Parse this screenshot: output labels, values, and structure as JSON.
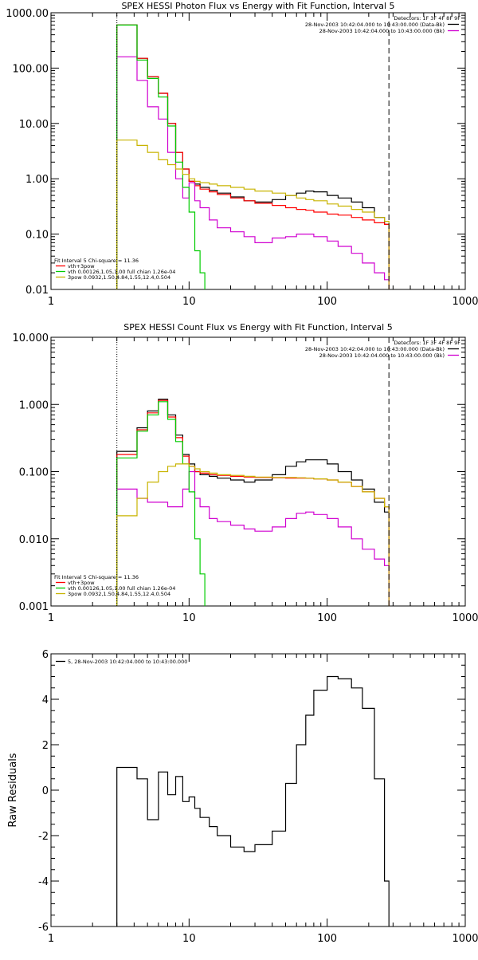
{
  "chart_data": [
    {
      "type": "line",
      "title": "SPEX HESSI Photon Flux vs Energy with Fit Function, Interval 5",
      "xscale": "log",
      "yscale": "log",
      "xlim": [
        1,
        1000
      ],
      "ylim": [
        0.01,
        1000
      ],
      "xticks": [
        {
          "v": 1,
          "label": "1"
        },
        {
          "v": 10,
          "label": "10"
        },
        {
          "v": 100,
          "label": "100"
        },
        {
          "v": 1000,
          "label": "1000"
        }
      ],
      "yticks": [
        {
          "v": 0.01,
          "label": "0.01"
        },
        {
          "v": 0.1,
          "label": "0.10"
        },
        {
          "v": 1,
          "label": "1.00"
        },
        {
          "v": 10,
          "label": "10.00"
        },
        {
          "v": 100,
          "label": "100.00"
        },
        {
          "v": 1000,
          "label": "1000.00"
        }
      ],
      "vlines": [
        {
          "x": 3,
          "style": "dotted",
          "color": "#000000"
        },
        {
          "x": 280,
          "style": "dashed",
          "color": "#000000"
        }
      ],
      "info_lines": [
        "Detectors: 1F 3F 4F 8F 9F",
        "28-Nov-2003 10:42:04.000 to 10:43:00.000 (Data-Bk)",
        "28-Nov-2003 10:42:04.000 to 10:43:00.000 (Bk)"
      ],
      "info_colors": [
        "",
        "#000000",
        "#d000d0"
      ],
      "legend_title": "Fit Interval 5   Chi-square = 11.36",
      "legend": [
        {
          "name": "vth+3pow",
          "color": "#ff0000"
        },
        {
          "name": "vth 0.00126,1.05,1.00  full chian 1.26e-04",
          "color": "#00cc00"
        },
        {
          "name": "3pow 0.0932,1.50,4.84,1.55,12.4,0.504",
          "color": "#c8b400"
        }
      ],
      "series": [
        {
          "role": "data-bk",
          "color": "#000000",
          "x": [
            3,
            3.5,
            4.2,
            5,
            6,
            7,
            8,
            9,
            10,
            11,
            12,
            14,
            16,
            20,
            25,
            30,
            40,
            50,
            60,
            70,
            80,
            100,
            120,
            150,
            180,
            220,
            260,
            280
          ],
          "y": [
            600,
            600,
            150,
            70,
            35,
            10,
            3,
            1.5,
            0.9,
            0.8,
            0.7,
            0.62,
            0.55,
            0.47,
            0.4,
            0.38,
            0.42,
            0.5,
            0.55,
            0.6,
            0.58,
            0.5,
            0.45,
            0.38,
            0.3,
            0.2,
            0.15,
            0.1
          ]
        },
        {
          "role": "vth+3pow",
          "color": "#ff0000",
          "x": [
            3,
            3.5,
            4.2,
            5,
            6,
            7,
            8,
            9,
            10,
            11,
            12,
            14,
            16,
            20,
            25,
            30,
            40,
            50,
            60,
            70,
            80,
            100,
            120,
            150,
            180,
            220,
            260,
            280
          ],
          "y": [
            600,
            600,
            150,
            70,
            35,
            10,
            3,
            1.5,
            0.9,
            0.75,
            0.65,
            0.58,
            0.52,
            0.45,
            0.4,
            0.36,
            0.33,
            0.3,
            0.28,
            0.27,
            0.25,
            0.23,
            0.22,
            0.2,
            0.18,
            0.16,
            0.15,
            0.1
          ]
        },
        {
          "role": "bk",
          "color": "#d000d0",
          "x": [
            3,
            3.5,
            4.2,
            5,
            6,
            7,
            8,
            9,
            10,
            11,
            12,
            14,
            16,
            20,
            25,
            30,
            40,
            50,
            60,
            70,
            80,
            100,
            120,
            150,
            180,
            220,
            260,
            280
          ],
          "y": [
            160,
            160,
            60,
            20,
            12,
            3,
            1,
            0.45,
            0.85,
            0.4,
            0.3,
            0.18,
            0.13,
            0.11,
            0.09,
            0.07,
            0.085,
            0.09,
            0.1,
            0.1,
            0.09,
            0.075,
            0.06,
            0.045,
            0.03,
            0.02,
            0.015,
            0.013
          ]
        },
        {
          "role": "vth",
          "color": "#00cc00",
          "x": [
            3,
            3.5,
            4.2,
            5,
            6,
            7,
            8,
            9,
            10,
            11,
            12,
            13
          ],
          "y": [
            600,
            600,
            140,
            65,
            30,
            9,
            2,
            0.7,
            0.25,
            0.05,
            0.02,
            0.01
          ]
        },
        {
          "role": "3pow",
          "color": "#c8b400",
          "x": [
            3,
            3.5,
            4.2,
            5,
            6,
            7,
            8,
            9,
            10,
            11,
            12,
            14,
            16,
            20,
            25,
            30,
            40,
            50,
            60,
            70,
            80,
            100,
            120,
            150,
            180,
            220,
            260,
            280
          ],
          "y": [
            5,
            5,
            4,
            3,
            2.2,
            1.8,
            1.5,
            1.2,
            1.0,
            0.9,
            0.85,
            0.8,
            0.75,
            0.7,
            0.65,
            0.6,
            0.55,
            0.5,
            0.45,
            0.42,
            0.4,
            0.35,
            0.32,
            0.28,
            0.25,
            0.2,
            0.17,
            0.13
          ]
        }
      ]
    },
    {
      "type": "line",
      "title": "SPEX HESSI Count Flux vs Energy with Fit Function, Interval 5",
      "xscale": "log",
      "yscale": "log",
      "xlim": [
        1,
        1000
      ],
      "ylim": [
        0.001,
        10
      ],
      "xticks": [
        {
          "v": 1,
          "label": "1"
        },
        {
          "v": 10,
          "label": "10"
        },
        {
          "v": 100,
          "label": "100"
        },
        {
          "v": 1000,
          "label": "1000"
        }
      ],
      "yticks": [
        {
          "v": 0.001,
          "label": "0.001"
        },
        {
          "v": 0.01,
          "label": "0.010"
        },
        {
          "v": 0.1,
          "label": "0.100"
        },
        {
          "v": 1,
          "label": "1.000"
        },
        {
          "v": 10,
          "label": "10.000"
        }
      ],
      "vlines": [
        {
          "x": 3,
          "style": "dotted",
          "color": "#000000"
        },
        {
          "x": 280,
          "style": "dashed",
          "color": "#000000"
        }
      ],
      "info_lines": [
        "Detectors: 1F 3F 4F 8F 9F",
        "28-Nov-2003 10:42:04.000 to 10:43:00.000 (Data-Bk)",
        "28-Nov-2003 10:42:04.000 to 10:43:00.000 (Bk)"
      ],
      "info_colors": [
        "",
        "#000000",
        "#d000d0"
      ],
      "legend_title": "Fit Interval 5   Chi-square = 11.36",
      "legend": [
        {
          "name": "vth+3pow",
          "color": "#ff0000"
        },
        {
          "name": "vth 0.00126,1.05,1.00  full chian 1.26e-04",
          "color": "#00cc00"
        },
        {
          "name": "3pow 0.0932,1.50,4.84,1.55,12.4,0.504",
          "color": "#c8b400"
        }
      ],
      "series": [
        {
          "role": "data-bk",
          "color": "#000000",
          "x": [
            3,
            3.5,
            4.2,
            5,
            6,
            7,
            8,
            9,
            10,
            11,
            12,
            14,
            16,
            20,
            25,
            30,
            40,
            50,
            60,
            70,
            80,
            100,
            120,
            150,
            180,
            220,
            260,
            280
          ],
          "y": [
            0.2,
            0.2,
            0.45,
            0.8,
            1.2,
            0.7,
            0.35,
            0.18,
            0.13,
            0.1,
            0.09,
            0.085,
            0.08,
            0.075,
            0.07,
            0.075,
            0.09,
            0.12,
            0.14,
            0.15,
            0.15,
            0.13,
            0.1,
            0.075,
            0.055,
            0.035,
            0.025,
            0.018
          ]
        },
        {
          "role": "vth+3pow",
          "color": "#ff0000",
          "x": [
            3,
            3.5,
            4.2,
            5,
            6,
            7,
            8,
            9,
            10,
            11,
            12,
            14,
            16,
            20,
            25,
            30,
            40,
            50,
            60,
            70,
            80,
            100,
            120,
            150,
            180,
            220,
            260,
            280
          ],
          "y": [
            0.18,
            0.18,
            0.42,
            0.75,
            1.15,
            0.65,
            0.32,
            0.17,
            0.12,
            0.1,
            0.095,
            0.09,
            0.088,
            0.085,
            0.083,
            0.082,
            0.081,
            0.08,
            0.08,
            0.08,
            0.078,
            0.075,
            0.07,
            0.06,
            0.05,
            0.04,
            0.03,
            0.025
          ]
        },
        {
          "role": "bk",
          "color": "#d000d0",
          "x": [
            3,
            3.5,
            4.2,
            5,
            6,
            7,
            8,
            9,
            10,
            11,
            12,
            14,
            16,
            20,
            25,
            30,
            40,
            50,
            60,
            70,
            80,
            100,
            120,
            150,
            180,
            220,
            260,
            280
          ],
          "y": [
            0.055,
            0.055,
            0.04,
            0.035,
            0.035,
            0.03,
            0.03,
            0.055,
            0.1,
            0.04,
            0.03,
            0.02,
            0.018,
            0.016,
            0.014,
            0.013,
            0.015,
            0.02,
            0.024,
            0.025,
            0.023,
            0.02,
            0.015,
            0.01,
            0.007,
            0.005,
            0.004,
            0.003
          ]
        },
        {
          "role": "vth",
          "color": "#00cc00",
          "x": [
            3,
            3.5,
            4.2,
            5,
            6,
            7,
            8,
            9,
            10,
            11,
            12,
            13
          ],
          "y": [
            0.16,
            0.16,
            0.4,
            0.7,
            1.1,
            0.6,
            0.28,
            0.13,
            0.05,
            0.01,
            0.003,
            0.001
          ]
        },
        {
          "role": "3pow",
          "color": "#c8b400",
          "x": [
            3,
            3.5,
            4.2,
            5,
            6,
            7,
            8,
            9,
            10,
            11,
            12,
            14,
            16,
            20,
            25,
            30,
            40,
            50,
            60,
            70,
            80,
            100,
            120,
            150,
            180,
            220,
            260,
            280
          ],
          "y": [
            0.022,
            0.022,
            0.04,
            0.07,
            0.1,
            0.12,
            0.13,
            0.13,
            0.12,
            0.11,
            0.1,
            0.095,
            0.09,
            0.088,
            0.085,
            0.083,
            0.082,
            0.082,
            0.081,
            0.08,
            0.078,
            0.075,
            0.07,
            0.06,
            0.05,
            0.04,
            0.03,
            0.025
          ]
        }
      ]
    },
    {
      "type": "line",
      "title": "",
      "ylabel": "Raw Residuals",
      "xscale": "log",
      "yscale": "linear",
      "xlim": [
        1,
        1000
      ],
      "ylim": [
        -6,
        6
      ],
      "xticks": [
        {
          "v": 1,
          "label": "1"
        },
        {
          "v": 10,
          "label": "10"
        },
        {
          "v": 100,
          "label": "100"
        },
        {
          "v": 1000,
          "label": "1000"
        }
      ],
      "yticks": [
        {
          "v": -6,
          "label": "-6"
        },
        {
          "v": -4,
          "label": "-4"
        },
        {
          "v": -2,
          "label": "-2"
        },
        {
          "v": 0,
          "label": "0"
        },
        {
          "v": 2,
          "label": "2"
        },
        {
          "v": 4,
          "label": "4"
        },
        {
          "v": 6,
          "label": "6"
        }
      ],
      "legend": [
        {
          "name": "5, 28-Nov-2003 10:42:04.000 to 10:43:00.000",
          "color": "#000000"
        }
      ],
      "series": [
        {
          "role": "residuals",
          "color": "#000000",
          "x": [
            3,
            3.5,
            4.2,
            5,
            6,
            7,
            8,
            9,
            10,
            11,
            12,
            14,
            16,
            20,
            25,
            30,
            40,
            50,
            60,
            70,
            80,
            100,
            120,
            150,
            180,
            220,
            260,
            280
          ],
          "y": [
            1,
            1,
            0.5,
            -1.3,
            0.8,
            -0.2,
            0.6,
            -0.5,
            -0.3,
            -0.8,
            -1.2,
            -1.6,
            -2.0,
            -2.5,
            -2.7,
            -2.4,
            -1.8,
            0.3,
            2.0,
            3.3,
            4.4,
            5.0,
            4.9,
            4.5,
            3.6,
            0.5,
            -4.0,
            -6.0
          ]
        }
      ]
    }
  ]
}
